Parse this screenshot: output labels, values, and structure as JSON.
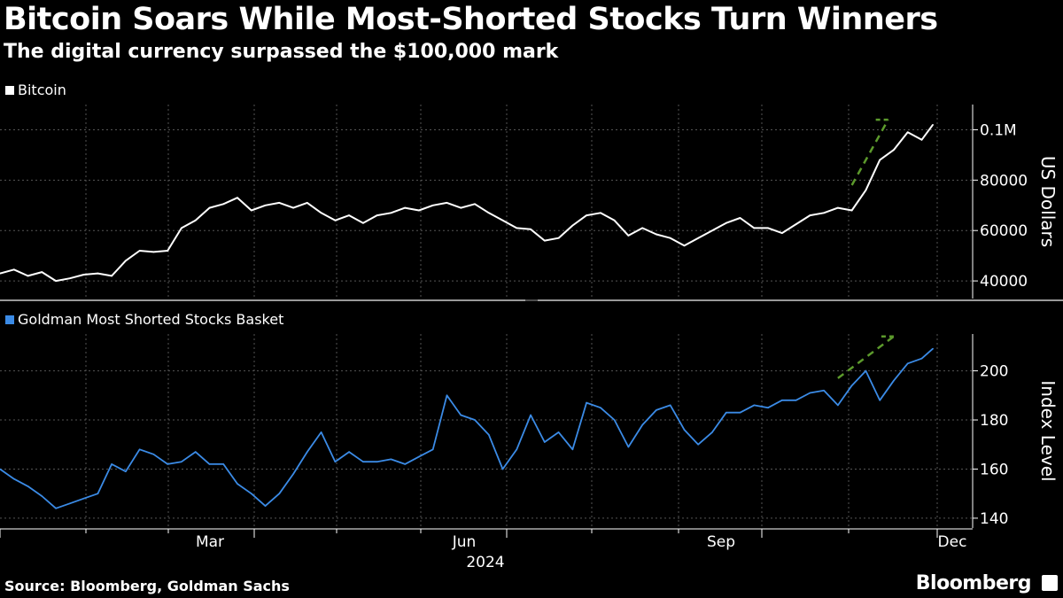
{
  "title": "Bitcoin Soars While Most-Shorted Stocks Turn Winners",
  "subtitle": "The digital currency surpassed the $100,000 mark",
  "source": "Source: Bloomberg, Goldman Sachs",
  "brand": "Bloomberg",
  "colors": {
    "background": "#000000",
    "bitcoin": "#ffffff",
    "basket": "#3b8be6",
    "trend": "#5c9a2c",
    "grid": "#555555"
  },
  "chart_data": [
    {
      "type": "line",
      "title": "Bitcoin",
      "legend": "Bitcoin",
      "ylabel": "US Dollars",
      "ylim": [
        33000,
        110000
      ],
      "yticks": [
        40000,
        60000,
        80000,
        100000
      ],
      "ytick_labels": [
        "40000",
        "60000",
        "80000",
        "0.1M"
      ],
      "x_range": [
        0,
        340
      ],
      "series": [
        {
          "name": "Bitcoin",
          "x": [
            0,
            5,
            10,
            15,
            20,
            25,
            30,
            35,
            40,
            45,
            50,
            55,
            60,
            65,
            70,
            75,
            80,
            85,
            90,
            95,
            100,
            105,
            110,
            115,
            120,
            125,
            130,
            135,
            140,
            145,
            150,
            155,
            160,
            165,
            170,
            175,
            180,
            185,
            190,
            195,
            200,
            205,
            210,
            215,
            220,
            225,
            230,
            235,
            240,
            245,
            250,
            255,
            260,
            265,
            270,
            275,
            280,
            285,
            290,
            295,
            300,
            305,
            310,
            315,
            320,
            325,
            330,
            334
          ],
          "values": [
            43000,
            44500,
            42000,
            43500,
            40000,
            41000,
            42500,
            43000,
            42000,
            48000,
            52000,
            51500,
            52000,
            61000,
            64000,
            69000,
            70500,
            73000,
            68000,
            70000,
            71000,
            69000,
            71000,
            67000,
            64000,
            66000,
            63000,
            66000,
            67000,
            69000,
            68000,
            70000,
            71000,
            69000,
            70500,
            67000,
            64000,
            61000,
            60500,
            56000,
            57000,
            62000,
            66000,
            67000,
            64000,
            58000,
            61000,
            58500,
            57000,
            54000,
            57000,
            60000,
            63000,
            65000,
            61000,
            61000,
            59000,
            62500,
            66000,
            67000,
            69000,
            68000,
            76000,
            88000,
            92000,
            99000,
            96000,
            102000
          ]
        },
        {
          "name": "Trend (dashed)",
          "x": [
            305,
            318
          ],
          "values": [
            78000,
            104000
          ]
        }
      ]
    },
    {
      "type": "line",
      "title": "Goldman Most Shorted Stocks Basket",
      "legend": "Goldman Most Shorted Stocks Basket",
      "ylabel": "Index Level",
      "ylim": [
        136,
        215
      ],
      "yticks": [
        140,
        160,
        180,
        200
      ],
      "ytick_labels": [
        "140",
        "160",
        "180",
        "200"
      ],
      "x_range": [
        0,
        340
      ],
      "series": [
        {
          "name": "Goldman Most Shorted Stocks Basket",
          "x": [
            0,
            5,
            10,
            15,
            20,
            25,
            30,
            35,
            40,
            45,
            50,
            55,
            60,
            65,
            70,
            75,
            80,
            85,
            90,
            95,
            100,
            105,
            110,
            115,
            120,
            125,
            130,
            135,
            140,
            145,
            150,
            155,
            160,
            165,
            170,
            175,
            180,
            185,
            190,
            195,
            200,
            205,
            210,
            215,
            220,
            225,
            230,
            235,
            240,
            245,
            250,
            255,
            260,
            265,
            270,
            275,
            280,
            285,
            290,
            295,
            300,
            305,
            310,
            315,
            320,
            325,
            330,
            334
          ],
          "values": [
            160,
            156,
            153,
            149,
            144,
            146,
            148,
            150,
            162,
            159,
            168,
            166,
            162,
            163,
            167,
            162,
            162,
            154,
            150,
            145,
            150,
            158,
            167,
            175,
            163,
            167,
            163,
            163,
            164,
            162,
            165,
            168,
            190,
            182,
            180,
            174,
            160,
            168,
            182,
            171,
            175,
            168,
            187,
            185,
            180,
            169,
            178,
            184,
            186,
            176,
            170,
            175,
            183,
            183,
            186,
            185,
            188,
            188,
            191,
            192,
            186,
            194,
            200,
            188,
            196,
            203,
            205,
            209
          ]
        },
        {
          "name": "Trend (dashed)",
          "x": [
            300,
            320
          ],
          "values": [
            197,
            214
          ]
        }
      ]
    }
  ],
  "x_axis": {
    "ticks": [
      "Mar",
      "Jun",
      "Sep",
      "Dec"
    ],
    "year": "2024"
  }
}
